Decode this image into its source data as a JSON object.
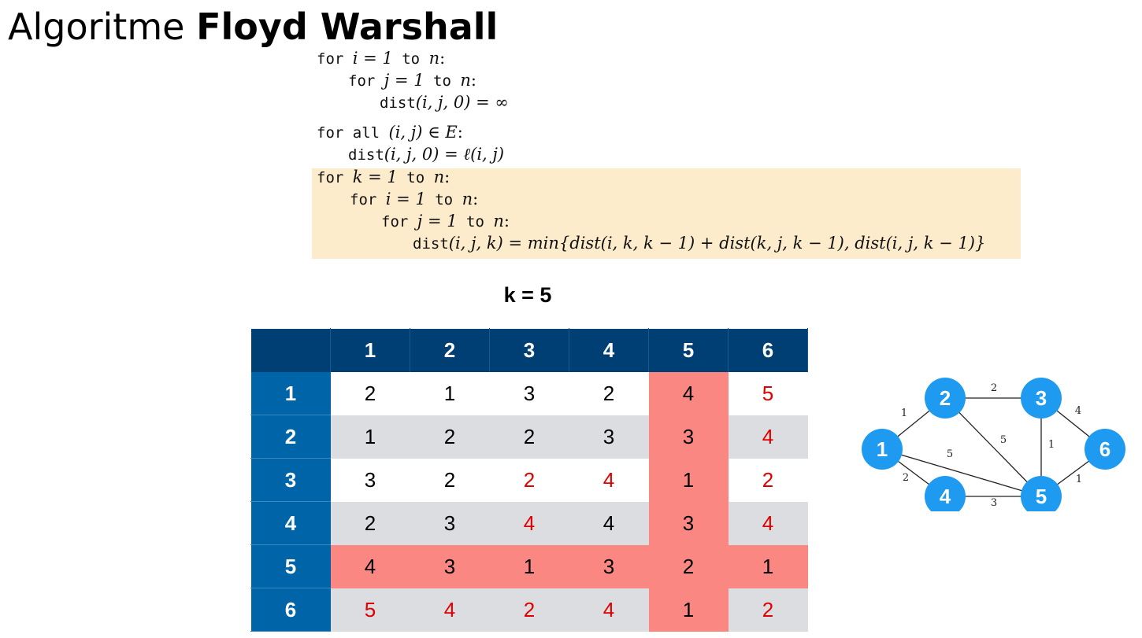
{
  "title": {
    "prefix": "Algoritme",
    "name": "Floyd Warshall"
  },
  "algorithm": {
    "lines": [
      {
        "kw": "for ",
        "math": "i = 1",
        "kw2": " to ",
        "math2": "n",
        "tail": ":"
      },
      {
        "kw": "for ",
        "math": "j = 1",
        "kw2": " to ",
        "math2": "n",
        "tail": ":"
      },
      {
        "kw": "dist",
        "math": "(i, j, 0) = ∞",
        "kw2": "",
        "math2": "",
        "tail": ""
      },
      {
        "kw": "for all ",
        "math": "(i, j) ∈ E",
        "kw2": "",
        "math2": "",
        "tail": ":"
      },
      {
        "kw": "dist",
        "math": "(i, j, 0) = ℓ(i, j)",
        "kw2": "",
        "math2": "",
        "tail": ""
      },
      {
        "kw": "for ",
        "math": "k = 1",
        "kw2": " to ",
        "math2": "n",
        "tail": ":"
      },
      {
        "kw": "for ",
        "math": "i = 1",
        "kw2": " to ",
        "math2": "n",
        "tail": ":"
      },
      {
        "kw": "for ",
        "math": "j = 1",
        "kw2": " to ",
        "math2": "n",
        "tail": ":"
      },
      {
        "kw": "dist",
        "math": "(i, j, k) = min{dist(i, k, k − 1) + dist(k, j, k − 1),  dist(i, j, k − 1)}",
        "kw2": "",
        "math2": "",
        "tail": ""
      }
    ]
  },
  "k_label": "k = 5",
  "matrix": {
    "headers": [
      "1",
      "2",
      "3",
      "4",
      "5",
      "6"
    ],
    "rows": [
      {
        "label": "1",
        "values": [
          "2",
          "1",
          "3",
          "2",
          "4",
          "5"
        ]
      },
      {
        "label": "2",
        "values": [
          "1",
          "2",
          "2",
          "3",
          "3",
          "4"
        ]
      },
      {
        "label": "3",
        "values": [
          "3",
          "2",
          "2",
          "4",
          "1",
          "2"
        ]
      },
      {
        "label": "4",
        "values": [
          "2",
          "3",
          "4",
          "4",
          "3",
          "4"
        ]
      },
      {
        "label": "5",
        "values": [
          "4",
          "3",
          "1",
          "3",
          "2",
          "1"
        ]
      },
      {
        "label": "6",
        "values": [
          "5",
          "4",
          "2",
          "4",
          "1",
          "2"
        ]
      }
    ],
    "changed_cells": [
      [
        0,
        5
      ],
      [
        1,
        5
      ],
      [
        2,
        2
      ],
      [
        2,
        3
      ],
      [
        2,
        5
      ],
      [
        3,
        2
      ],
      [
        3,
        5
      ],
      [
        5,
        0
      ],
      [
        5,
        1
      ],
      [
        5,
        2
      ],
      [
        5,
        3
      ],
      [
        5,
        5
      ]
    ],
    "highlight_index": 4,
    "colors": {
      "header": "#003f73",
      "row_header": "#0064a8",
      "highlight": "#fa8782",
      "changed_text": "#e00000",
      "stripe": "#dcdde1"
    }
  },
  "graph": {
    "node_color": "#1e9bf0",
    "nodes": [
      "1",
      "2",
      "3",
      "4",
      "5",
      "6"
    ],
    "edges": [
      {
        "from": "1",
        "to": "2",
        "weight": "1"
      },
      {
        "from": "2",
        "to": "3",
        "weight": "2"
      },
      {
        "from": "2",
        "to": "5",
        "weight": "5"
      },
      {
        "from": "3",
        "to": "5",
        "weight": "1"
      },
      {
        "from": "3",
        "to": "6",
        "weight": "4"
      },
      {
        "from": "1",
        "to": "5",
        "weight": "5"
      },
      {
        "from": "1",
        "to": "4",
        "weight": "2"
      },
      {
        "from": "4",
        "to": "5",
        "weight": "3"
      },
      {
        "from": "5",
        "to": "6",
        "weight": "1"
      }
    ]
  }
}
